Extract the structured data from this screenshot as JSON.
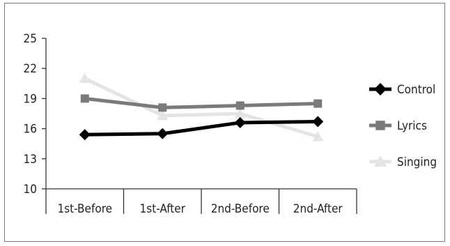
{
  "chart_data": {
    "type": "line",
    "title": "",
    "xlabel": "",
    "ylabel": "",
    "categories": [
      "1st-Before",
      "1st-After",
      "2nd-Before",
      "2nd-After"
    ],
    "ylim": [
      10,
      25
    ],
    "yticks": [
      10,
      13,
      16,
      19,
      22,
      25
    ],
    "grid": false,
    "legend_position": "right",
    "series": [
      {
        "name": "Control",
        "values": [
          15.4,
          15.5,
          16.6,
          16.7
        ],
        "color": "#000000",
        "marker": "diamond"
      },
      {
        "name": "Lyrics",
        "values": [
          19.0,
          18.1,
          18.3,
          18.5
        ],
        "color": "#7a7a7a",
        "marker": "square"
      },
      {
        "name": "Singing",
        "values": [
          21.0,
          17.3,
          17.5,
          15.2
        ],
        "color": "#e4e4e4",
        "marker": "triangle"
      }
    ]
  }
}
